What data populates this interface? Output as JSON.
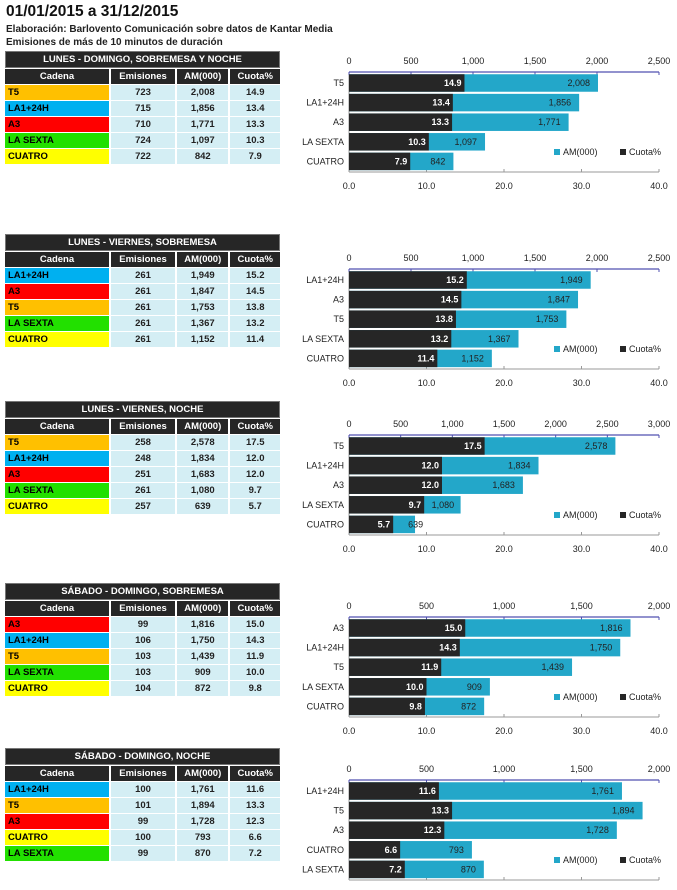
{
  "header": {
    "title": "01/01/2015 a 31/12/2015",
    "source": "Elaboración:  Barlovento Comunicación  sobre datos de Kantar Media",
    "note": "Emisiones  de más de 10 minutos de duración"
  },
  "columns": [
    "Cadena",
    "Emisiones",
    "AM(000)",
    "Cuota%"
  ],
  "channel_colors": {
    "T5": "#ffc000",
    "LA1+24H": "#00b0f0",
    "A3": "#ff0000",
    "LA SEXTA": "#22e000",
    "CUATRO": "#ffff00"
  },
  "series_colors": {
    "AM(000)": "#23a7c9",
    "Cuota%": "#262626"
  },
  "chart_data": [
    {
      "type": "bar",
      "title": "LUNES - DOMINGO, SOBREMESA Y NOCHE",
      "categories": [
        "T5",
        "LA1+24H",
        "A3",
        "LA SEXTA",
        "CUATRO"
      ],
      "emisiones": [
        723,
        715,
        710,
        724,
        722
      ],
      "series": [
        {
          "name": "AM(000)",
          "values": [
            2008,
            1856,
            1771,
            1097,
            842
          ],
          "labels": [
            "2,008",
            "1,856",
            "1,771",
            "1,097",
            "842"
          ],
          "axis": "top",
          "xlim": [
            0,
            2500
          ],
          "ticks": [
            "0",
            "500",
            "1,000",
            "1,500",
            "2,000",
            "2,500"
          ]
        },
        {
          "name": "Cuota%",
          "values": [
            14.9,
            13.4,
            13.3,
            10.3,
            7.9
          ],
          "labels": [
            "14.9",
            "13.4",
            "13.3",
            "10.3",
            "7.9"
          ],
          "axis": "bottom",
          "xlim": [
            0,
            40
          ],
          "ticks": [
            "0.0",
            "10.0",
            "20.0",
            "30.0",
            "40.0"
          ]
        }
      ],
      "legend": "bottom-right"
    },
    {
      "type": "bar",
      "title": "LUNES - VIERNES, SOBREMESA",
      "categories": [
        "LA1+24H",
        "A3",
        "T5",
        "LA SEXTA",
        "CUATRO"
      ],
      "emisiones": [
        261,
        261,
        261,
        261,
        261
      ],
      "series": [
        {
          "name": "AM(000)",
          "values": [
            1949,
            1847,
            1753,
            1367,
            1152
          ],
          "labels": [
            "1,949",
            "1,847",
            "1,753",
            "1,367",
            "1,152"
          ],
          "axis": "top",
          "xlim": [
            0,
            2500
          ],
          "ticks": [
            "0",
            "500",
            "1,000",
            "1,500",
            "2,000",
            "2,500"
          ]
        },
        {
          "name": "Cuota%",
          "values": [
            15.2,
            14.5,
            13.8,
            13.2,
            11.4
          ],
          "labels": [
            "15.2",
            "14.5",
            "13.8",
            "13.2",
            "11.4"
          ],
          "axis": "bottom",
          "xlim": [
            0,
            40
          ],
          "ticks": [
            "0.0",
            "10.0",
            "20.0",
            "30.0",
            "40.0"
          ]
        }
      ],
      "legend": "bottom-right"
    },
    {
      "type": "bar",
      "title": "LUNES - VIERNES, NOCHE",
      "categories": [
        "T5",
        "LA1+24H",
        "A3",
        "LA SEXTA",
        "CUATRO"
      ],
      "emisiones": [
        258,
        248,
        251,
        261,
        257
      ],
      "series": [
        {
          "name": "AM(000)",
          "values": [
            2578,
            1834,
            1683,
            1080,
            639
          ],
          "labels": [
            "2,578",
            "1,834",
            "1,683",
            "1,080",
            "639"
          ],
          "axis": "top",
          "xlim": [
            0,
            3000
          ],
          "ticks": [
            "0",
            "500",
            "1,000",
            "1,500",
            "2,000",
            "2,500",
            "3,000"
          ]
        },
        {
          "name": "Cuota%",
          "values": [
            17.5,
            12.0,
            12.0,
            9.7,
            5.7
          ],
          "labels": [
            "17.5",
            "12.0",
            "12.0",
            "9.7",
            "5.7"
          ],
          "axis": "bottom",
          "xlim": [
            0,
            40
          ],
          "ticks": [
            "0.0",
            "10.0",
            "20.0",
            "30.0",
            "40.0"
          ]
        }
      ],
      "legend": "bottom-right"
    },
    {
      "type": "bar",
      "title": "SÁBADO - DOMINGO, SOBREMESA",
      "categories": [
        "A3",
        "LA1+24H",
        "T5",
        "LA SEXTA",
        "CUATRO"
      ],
      "emisiones": [
        99,
        106,
        103,
        103,
        104
      ],
      "series": [
        {
          "name": "AM(000)",
          "values": [
            1816,
            1750,
            1439,
            909,
            872
          ],
          "labels": [
            "1,816",
            "1,750",
            "1,439",
            "909",
            "872"
          ],
          "axis": "top",
          "xlim": [
            0,
            2000
          ],
          "ticks": [
            "0",
            "500",
            "1,000",
            "1,500",
            "2,000"
          ]
        },
        {
          "name": "Cuota%",
          "values": [
            15.0,
            14.3,
            11.9,
            10.0,
            9.8
          ],
          "labels": [
            "15.0",
            "14.3",
            "11.9",
            "10.0",
            "9.8"
          ],
          "axis": "bottom",
          "xlim": [
            0,
            40
          ],
          "ticks": [
            "0.0",
            "10.0",
            "20.0",
            "30.0",
            "40.0"
          ]
        }
      ],
      "legend": "bottom-right"
    },
    {
      "type": "bar",
      "title": "SÁBADO - DOMINGO, NOCHE",
      "categories": [
        "LA1+24H",
        "T5",
        "A3",
        "CUATRO",
        "LA SEXTA"
      ],
      "emisiones": [
        100,
        101,
        99,
        100,
        99
      ],
      "series": [
        {
          "name": "AM(000)",
          "values": [
            1761,
            1894,
            1728,
            793,
            870
          ],
          "labels": [
            "1,761",
            "1,894",
            "1,728",
            "793",
            "870"
          ],
          "axis": "top",
          "xlim": [
            0,
            2000
          ],
          "ticks": [
            "0",
            "500",
            "1,000",
            "1,500",
            "2,000"
          ]
        },
        {
          "name": "Cuota%",
          "values": [
            11.6,
            13.3,
            12.3,
            6.6,
            7.2
          ],
          "labels": [
            "11.6",
            "13.3",
            "12.3",
            "6.6",
            "7.2"
          ],
          "axis": "bottom",
          "xlim": [
            0,
            40
          ],
          "ticks": [
            "0.0",
            "10.0",
            "20.0",
            "30.0",
            "40.0"
          ]
        }
      ],
      "legend": "bottom-right"
    }
  ]
}
